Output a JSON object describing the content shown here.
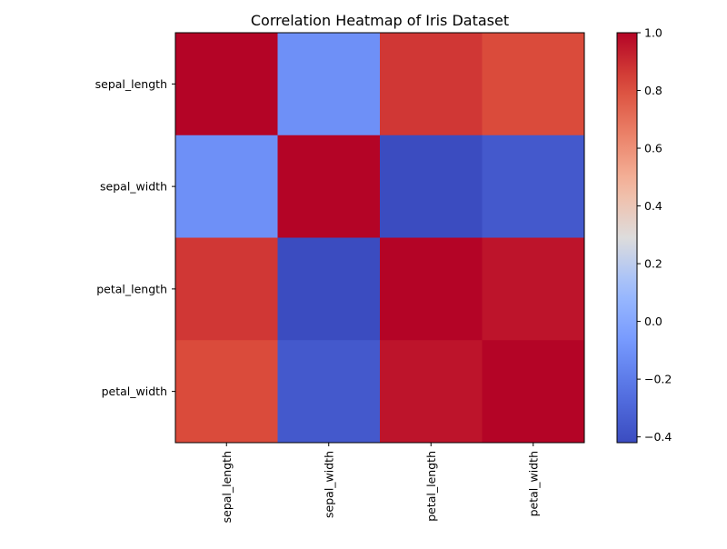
{
  "chart_data": {
    "type": "heatmap",
    "title": "Correlation Heatmap of Iris Dataset",
    "xlabel": "",
    "ylabel": "",
    "rows": [
      "sepal_length",
      "sepal_width",
      "petal_length",
      "petal_width"
    ],
    "columns": [
      "sepal_length",
      "sepal_width",
      "petal_length",
      "petal_width"
    ],
    "values": [
      [
        1.0,
        -0.11,
        0.87,
        0.82
      ],
      [
        -0.11,
        1.0,
        -0.42,
        -0.36
      ],
      [
        0.87,
        -0.42,
        1.0,
        0.96
      ],
      [
        0.82,
        -0.36,
        0.96,
        1.0
      ]
    ],
    "colormap": "coolwarm",
    "vmin": -0.42,
    "vmax": 1.0,
    "colorbar": {
      "ticks": [
        -0.4,
        -0.2,
        0.0,
        0.2,
        0.4,
        0.6,
        0.8,
        1.0
      ],
      "tick_labels": [
        "−0.4",
        "−0.2",
        "0.0",
        "0.2",
        "0.4",
        "0.6",
        "0.8",
        "1.0"
      ]
    },
    "annotations": false,
    "grid": false,
    "x_tick_rotation": "vertical"
  }
}
